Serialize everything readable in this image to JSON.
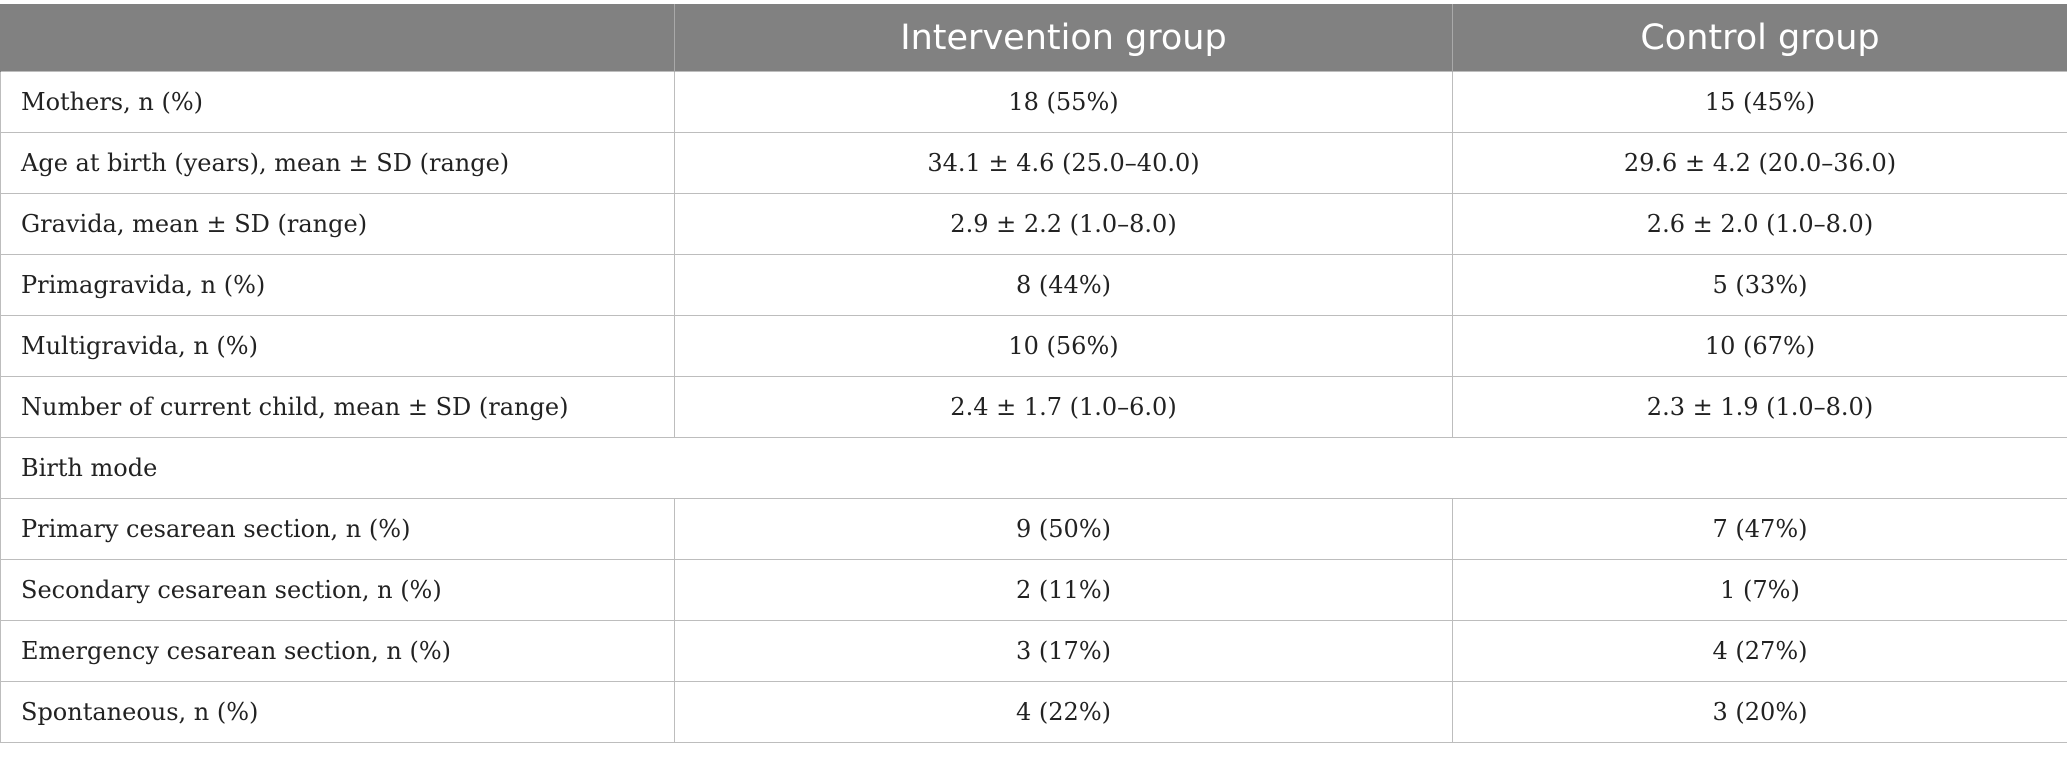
{
  "table": {
    "headers": [
      "",
      "Intervention group",
      "Control group"
    ],
    "rows": [
      {
        "label": "Mothers, n (%)",
        "intervention": "18 (55%)",
        "control": "15 (45%)"
      },
      {
        "label": "Age at birth (years), mean ± SD (range)",
        "intervention": "34.1 ± 4.6 (25.0–40.0)",
        "control": "29.6 ± 4.2 (20.0–36.0)"
      },
      {
        "label": "Gravida, mean ± SD (range)",
        "intervention": "2.9 ± 2.2 (1.0–8.0)",
        "control": "2.6 ± 2.0 (1.0–8.0)"
      },
      {
        "label": "Primagravida, n (%)",
        "intervention": "8 (44%)",
        "control": "5 (33%)"
      },
      {
        "label": "Multigravida, n (%)",
        "intervention": "10 (56%)",
        "control": "10 (67%)"
      },
      {
        "label": "Number of current child, mean ± SD (range)",
        "intervention": "2.4 ± 1.7 (1.0–6.0)",
        "control": "2.3 ± 1.9 (1.0–8.0)"
      }
    ],
    "section_label": "Birth mode",
    "section_rows": [
      {
        "label": "Primary cesarean section, n (%)",
        "intervention": "9 (50%)",
        "control": "7 (47%)"
      },
      {
        "label": "Secondary cesarean section, n (%)",
        "intervention": "2 (11%)",
        "control": "1 (7%)"
      },
      {
        "label": "Emergency cesarean section, n (%)",
        "intervention": "3 (17%)",
        "control": "4 (27%)"
      },
      {
        "label": "Spontaneous, n (%)",
        "intervention": "4 (22%)",
        "control": "3 (20%)"
      }
    ]
  }
}
